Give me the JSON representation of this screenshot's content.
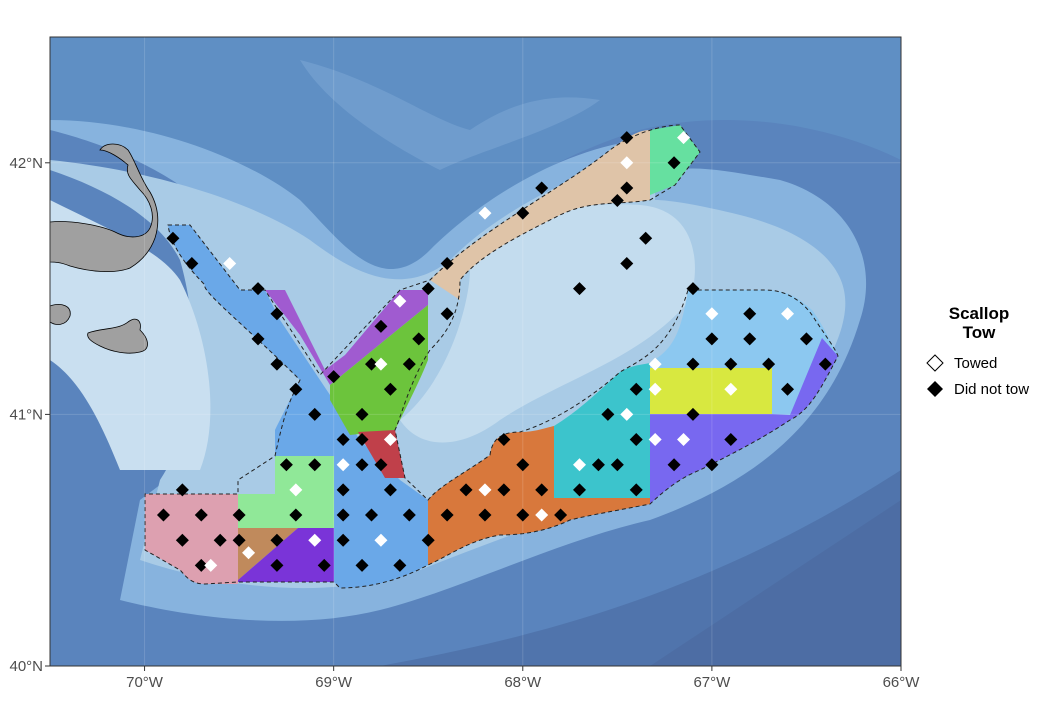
{
  "legend": {
    "title_line1": "Scallop",
    "title_line2": "Tow",
    "items": [
      {
        "label": "Towed",
        "symbol": "open-diamond"
      },
      {
        "label": "Did not tow",
        "symbol": "filled-diamond"
      }
    ]
  },
  "axes": {
    "x_range": [
      -70.5,
      -66.0
    ],
    "y_range": [
      40.0,
      42.5
    ],
    "x_ticks": [
      {
        "value": -70,
        "label": "70°W"
      },
      {
        "value": -69,
        "label": "69°W"
      },
      {
        "value": -68,
        "label": "68°W"
      },
      {
        "value": -67,
        "label": "67°W"
      },
      {
        "value": -66,
        "label": "66°W"
      }
    ],
    "y_ticks": [
      {
        "value": 40,
        "label": "40°N"
      },
      {
        "value": 41,
        "label": "41°N"
      },
      {
        "value": 42,
        "label": "42°N"
      }
    ]
  },
  "colors": {
    "deep_water": "#4a6fa8",
    "mid_water": "#6f9bd0",
    "shallow_water": "#a9cbe6",
    "bank": "#c9dff0",
    "land": "#a0a0a0",
    "towed_marker": "#ffffff",
    "did_not_tow_marker": "#000000"
  },
  "chart_data": {
    "type": "scatter",
    "stations_towed": [
      [
        -69.55,
        41.6
      ],
      [
        -68.65,
        41.45
      ],
      [
        -67.45,
        42.0
      ],
      [
        -67.15,
        42.1
      ],
      [
        -68.2,
        41.8
      ],
      [
        -68.75,
        41.2
      ],
      [
        -67.3,
        41.2
      ],
      [
        -67.3,
        41.1
      ],
      [
        -66.9,
        41.1
      ],
      [
        -67.0,
        41.4
      ],
      [
        -66.6,
        41.4
      ],
      [
        -68.7,
        40.9
      ],
      [
        -68.95,
        40.8
      ],
      [
        -69.2,
        40.7
      ],
      [
        -69.1,
        40.5
      ],
      [
        -68.75,
        40.5
      ],
      [
        -68.2,
        40.7
      ],
      [
        -67.9,
        40.6
      ],
      [
        -67.45,
        41.0
      ],
      [
        -67.7,
        40.8
      ],
      [
        -67.3,
        40.9
      ],
      [
        -67.15,
        40.9
      ],
      [
        -69.45,
        40.45
      ],
      [
        -69.65,
        40.4
      ]
    ],
    "stations_did_not_tow": [
      [
        -69.85,
        41.7
      ],
      [
        -69.75,
        41.6
      ],
      [
        -69.4,
        41.5
      ],
      [
        -69.3,
        41.4
      ],
      [
        -69.4,
        41.3
      ],
      [
        -69.3,
        41.2
      ],
      [
        -69.2,
        41.1
      ],
      [
        -69.1,
        41.0
      ],
      [
        -69.0,
        41.15
      ],
      [
        -68.8,
        41.2
      ],
      [
        -68.6,
        41.2
      ],
      [
        -68.75,
        41.35
      ],
      [
        -68.55,
        41.3
      ],
      [
        -68.5,
        41.5
      ],
      [
        -68.4,
        41.6
      ],
      [
        -68.4,
        41.4
      ],
      [
        -68.7,
        41.1
      ],
      [
        -68.85,
        41.0
      ],
      [
        -68.95,
        40.9
      ],
      [
        -68.85,
        40.9
      ],
      [
        -68.75,
        40.8
      ],
      [
        -68.85,
        40.8
      ],
      [
        -68.95,
        40.7
      ],
      [
        -68.7,
        40.7
      ],
      [
        -68.8,
        40.6
      ],
      [
        -68.95,
        40.6
      ],
      [
        -68.6,
        40.6
      ],
      [
        -68.95,
        40.5
      ],
      [
        -68.85,
        40.4
      ],
      [
        -68.65,
        40.4
      ],
      [
        -69.05,
        40.4
      ],
      [
        -69.1,
        40.8
      ],
      [
        -69.25,
        40.8
      ],
      [
        -69.2,
        40.6
      ],
      [
        -69.3,
        40.5
      ],
      [
        -69.3,
        40.4
      ],
      [
        -69.5,
        40.6
      ],
      [
        -69.5,
        40.5
      ],
      [
        -69.7,
        40.6
      ],
      [
        -69.8,
        40.7
      ],
      [
        -69.9,
        40.6
      ],
      [
        -69.8,
        40.5
      ],
      [
        -69.7,
        40.4
      ],
      [
        -69.6,
        40.5
      ],
      [
        -68.5,
        40.5
      ],
      [
        -68.4,
        40.6
      ],
      [
        -68.3,
        40.7
      ],
      [
        -68.2,
        40.6
      ],
      [
        -68.1,
        40.7
      ],
      [
        -68.0,
        40.6
      ],
      [
        -68.1,
        40.9
      ],
      [
        -68.0,
        40.8
      ],
      [
        -67.9,
        40.7
      ],
      [
        -67.8,
        40.6
      ],
      [
        -67.7,
        40.7
      ],
      [
        -67.6,
        40.8
      ],
      [
        -67.5,
        40.8
      ],
      [
        -67.4,
        40.7
      ],
      [
        -67.4,
        40.9
      ],
      [
        -67.55,
        41.0
      ],
      [
        -67.4,
        41.1
      ],
      [
        -67.2,
        40.8
      ],
      [
        -67.0,
        40.8
      ],
      [
        -66.9,
        40.9
      ],
      [
        -67.1,
        41.0
      ],
      [
        -67.1,
        41.2
      ],
      [
        -67.0,
        41.3
      ],
      [
        -66.9,
        41.2
      ],
      [
        -66.8,
        41.3
      ],
      [
        -66.7,
        41.2
      ],
      [
        -66.6,
        41.1
      ],
      [
        -66.5,
        41.3
      ],
      [
        -66.4,
        41.2
      ],
      [
        -67.1,
        41.5
      ],
      [
        -67.7,
        41.5
      ],
      [
        -67.45,
        41.6
      ],
      [
        -67.35,
        41.7
      ],
      [
        -67.5,
        41.85
      ],
      [
        -67.45,
        41.9
      ],
      [
        -67.2,
        42.0
      ],
      [
        -67.45,
        42.1
      ],
      [
        -67.9,
        41.9
      ],
      [
        -68.0,
        41.8
      ],
      [
        -66.8,
        41.4
      ]
    ]
  }
}
